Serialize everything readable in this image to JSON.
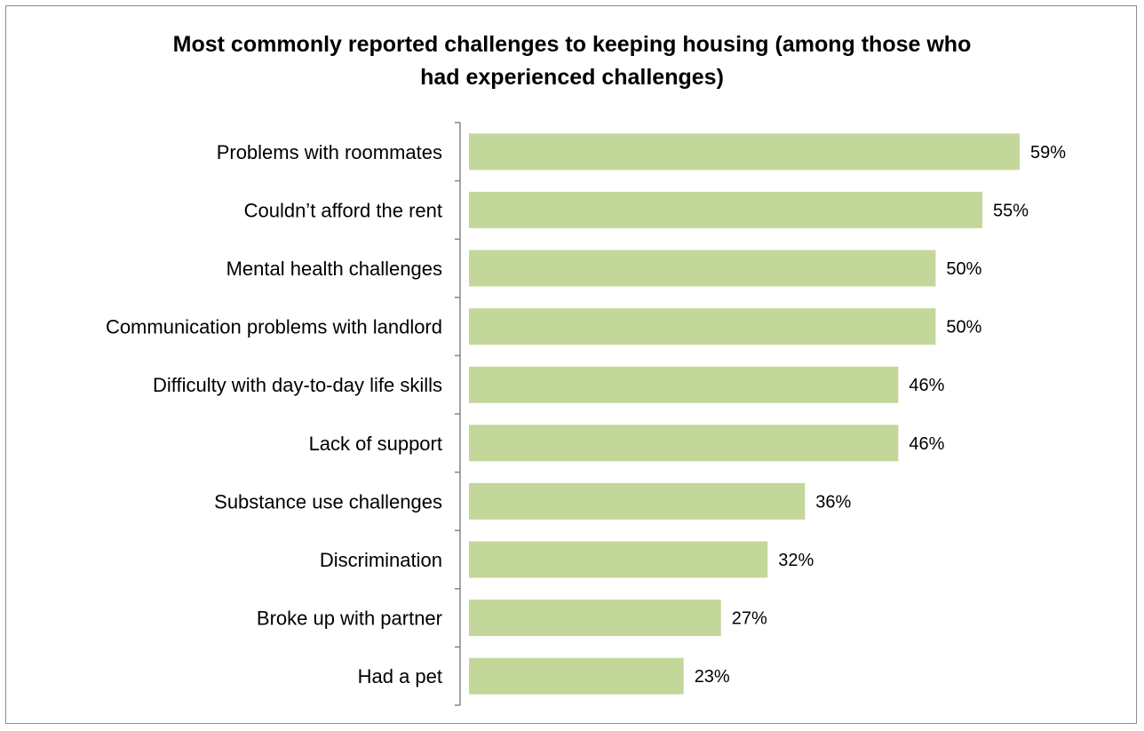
{
  "chart_data": {
    "type": "bar",
    "orientation": "horizontal",
    "title_lines": [
      "Most commonly reported challenges to keeping housing (among those who",
      "had experienced challenges)"
    ],
    "categories": [
      "Problems with roommates",
      "Couldn’t afford the rent",
      "Mental health challenges",
      "Communication problems with landlord",
      "Difficulty with day-to-day life skills",
      "Lack of support",
      "Substance use challenges",
      "Discrimination",
      "Broke up with partner",
      "Had a pet"
    ],
    "values": [
      59,
      55,
      50,
      50,
      46,
      46,
      36,
      32,
      27,
      23
    ],
    "value_labels": [
      "59%",
      "55%",
      "50%",
      "50%",
      "46%",
      "46%",
      "36%",
      "32%",
      "27%",
      "23%"
    ],
    "xlim": [
      0,
      70
    ],
    "grid": false,
    "legend": "none",
    "bar_color": "#c4d79b",
    "axis_color": "#868686"
  }
}
